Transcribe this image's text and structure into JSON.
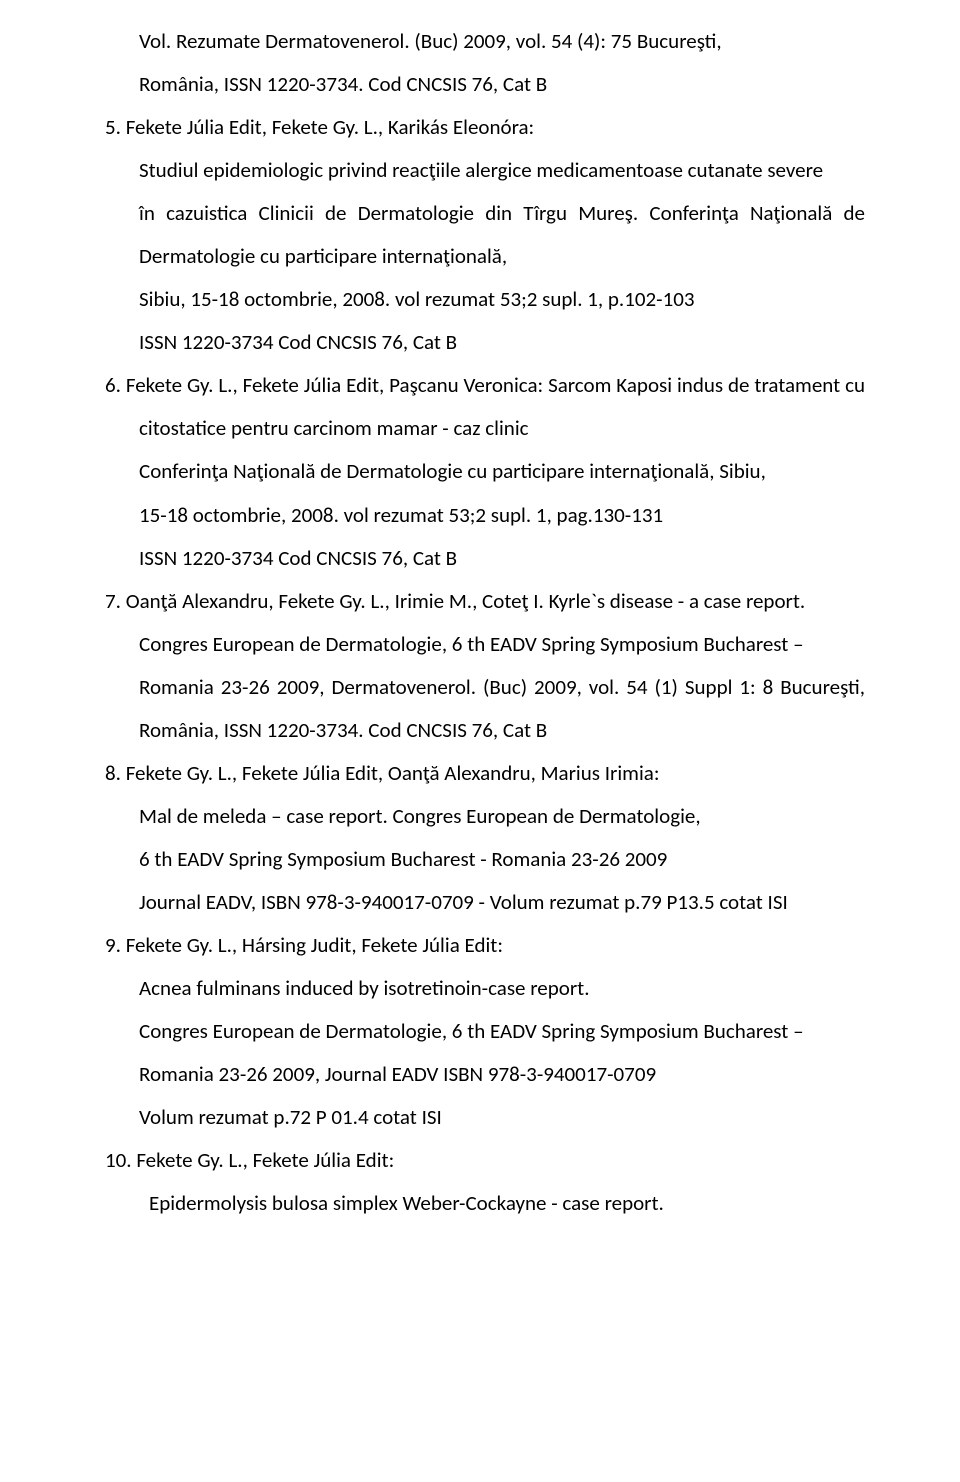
{
  "lines": {
    "l0": "Vol. Rezumate Dermatovenerol. (Buc) 2009, vol. 54 (4): 75 Bucureşti,",
    "l1": "România, ISSN 1220-3734. Cod CNCSIS 76, Cat B",
    "l2": "5.   Fekete Júlia Edit, Fekete Gy. L., Karikás Eleonóra:",
    "l3": "Studiul epidemiologic privind reacţiile alergice medicamentoase cutanate severe",
    "l4": "în cazuistica Clinicii de Dermatologie din Tîrgu Mureş. Conferinţa Naţională de Dermatologie cu participare internaţională,",
    "l5": "Sibiu, 15-18 octombrie, 2008. vol rezumat 53;2 supl. 1, p.102-103",
    "l6": "ISSN 1220-3734 Cod CNCSIS 76, Cat B",
    "l7": "6.   Fekete Gy. L., Fekete Júlia Edit, Paşcanu Veronica: Sarcom Kaposi indus de tratament cu citostatice pentru carcinom mamar - caz clinic",
    "l8": "Conferinţa Naţională de Dermatologie cu participare internaţională, Sibiu,",
    "l9": "15-18 octombrie, 2008. vol rezumat 53;2 supl. 1, pag.130-131",
    "l10": " ISSN 1220-3734 Cod CNCSIS 76, Cat B",
    "l11": "7.   Oanţă Alexandru, Fekete Gy. L., Irimie M., Coteţ I. Kyrle`s disease - a case report.",
    "l12": " Congres European de Dermatologie, 6 th EADV Spring Symposium Bucharest –",
    "l13": " Romania 23-26 2009, Dermatovenerol. (Buc) 2009, vol. 54 (1) Suppl 1: 8 Bucureşti, România, ISSN 1220-3734. Cod CNCSIS 76, Cat B",
    "l14": "8.   Fekete Gy. L., Fekete Júlia Edit, Oanţă Alexandru, Marius Irimia:",
    "l15": "Mal de meleda – case report. Congres European de Dermatologie,",
    "l16": "6 th EADV Spring Symposium Bucharest - Romania 23-26 2009",
    "l17": " Journal EADV,  ISBN 978-3-940017-0709 - Volum rezumat p.79 P13.5 cotat ISI",
    "l18": "9.   Fekete Gy. L., Hársing Judit, Fekete Júlia Edit:",
    "l19": "Acnea fulminans induced by isotretinoin-case report.",
    "l20": "Congres European de Dermatologie, 6 th EADV Spring Symposium Bucharest –",
    "l21": "Romania 23-26 2009, Journal EADV ISBN 978-3-940017-0709",
    "l22": "Volum rezumat p.72 P 01.4 cotat ISI",
    "l23": "10. Fekete Gy. L., Fekete Júlia Edit:",
    "l24": "Epidermolysis bulosa simplex Weber-Cockayne - case report."
  },
  "style": {
    "fontSizePx": 21,
    "lineHeight": 2.05,
    "textColor": "#000000",
    "background": "#ffffff",
    "pageWidthPx": 960,
    "pageHeightPx": 1482,
    "fontFamily": "Calibri"
  }
}
